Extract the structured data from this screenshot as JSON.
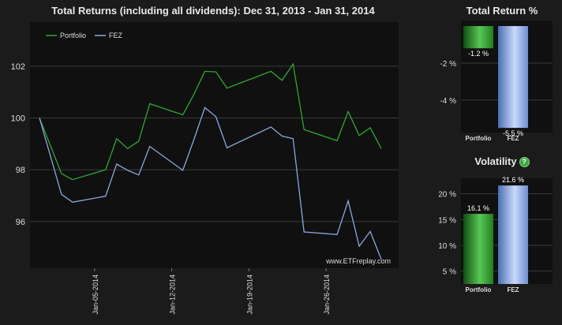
{
  "main_title": "Total Returns (including all dividends): Dec 31, 2013 - Jan 31, 2014",
  "return_title": "Total Return %",
  "volatility_title": "Volatility",
  "help_icon_label": "?",
  "watermark": "www.ETFreplay.com",
  "colors": {
    "background": "#1b1b1b",
    "plot_bg": "#101010",
    "grid": "#3a3a3a",
    "portfolio": "#2ea82e",
    "fez": "#8aa8e0"
  },
  "chart_data": [
    {
      "type": "line",
      "title": "Total Returns (including all dividends): Dec 31, 2013 - Jan 31, 2014",
      "x": [
        "2013-12-31",
        "2014-01-02",
        "2014-01-03",
        "2014-01-06",
        "2014-01-07",
        "2014-01-08",
        "2014-01-09",
        "2014-01-10",
        "2014-01-13",
        "2014-01-14",
        "2014-01-15",
        "2014-01-16",
        "2014-01-17",
        "2014-01-21",
        "2014-01-22",
        "2014-01-23",
        "2014-01-24",
        "2014-01-27",
        "2014-01-28",
        "2014-01-29",
        "2014-01-30",
        "2014-01-31"
      ],
      "series": [
        {
          "name": "Portfolio",
          "values": [
            100.0,
            97.85,
            97.62,
            98.0,
            99.2,
            98.82,
            99.1,
            100.55,
            100.12,
            100.9,
            101.8,
            101.78,
            101.15,
            101.8,
            101.45,
            102.08,
            99.55,
            99.12,
            100.25,
            99.32,
            99.62,
            98.82
          ]
        },
        {
          "name": "FEZ",
          "values": [
            100.0,
            97.05,
            96.75,
            96.98,
            98.22,
            97.98,
            97.8,
            98.9,
            97.98,
            99.15,
            100.4,
            100.05,
            98.85,
            99.65,
            99.3,
            99.2,
            95.6,
            95.5,
            96.8,
            95.05,
            95.62,
            94.55
          ]
        }
      ],
      "xlabel": "",
      "ylabel": "",
      "ylim": [
        94.2,
        103.7
      ],
      "yticks": [
        96,
        98,
        100,
        102
      ],
      "xticks": [
        "Jan-05-2014",
        "Jan-12-2014",
        "Jan-19-2014",
        "Jan-26-2014"
      ],
      "xtick_dates": [
        "2014-01-05",
        "2014-01-12",
        "2014-01-19",
        "2014-01-26"
      ],
      "legend": "top-left",
      "grid": true
    },
    {
      "type": "bar",
      "title": "Total Return %",
      "categories": [
        "Portfolio",
        "FEZ"
      ],
      "values": [
        -1.2,
        -5.5
      ],
      "value_labels": [
        "-1.2 %",
        "-5.5 %"
      ],
      "ylim": [
        -5.75,
        0.3
      ],
      "yticks": [
        -2,
        -4
      ],
      "ytick_labels": [
        "-2 %",
        "-4 %"
      ],
      "grid": true
    },
    {
      "type": "bar",
      "title": "Volatility",
      "categories": [
        "Portfolio",
        "FEZ"
      ],
      "values": [
        16.1,
        21.6
      ],
      "value_labels": [
        "16.1 %",
        "21.6 %"
      ],
      "ylim": [
        2.5,
        23
      ],
      "yticks": [
        5,
        10,
        15,
        20
      ],
      "ytick_labels": [
        "5 %",
        "10 %",
        "15 %",
        "20 %"
      ],
      "grid": true
    }
  ]
}
